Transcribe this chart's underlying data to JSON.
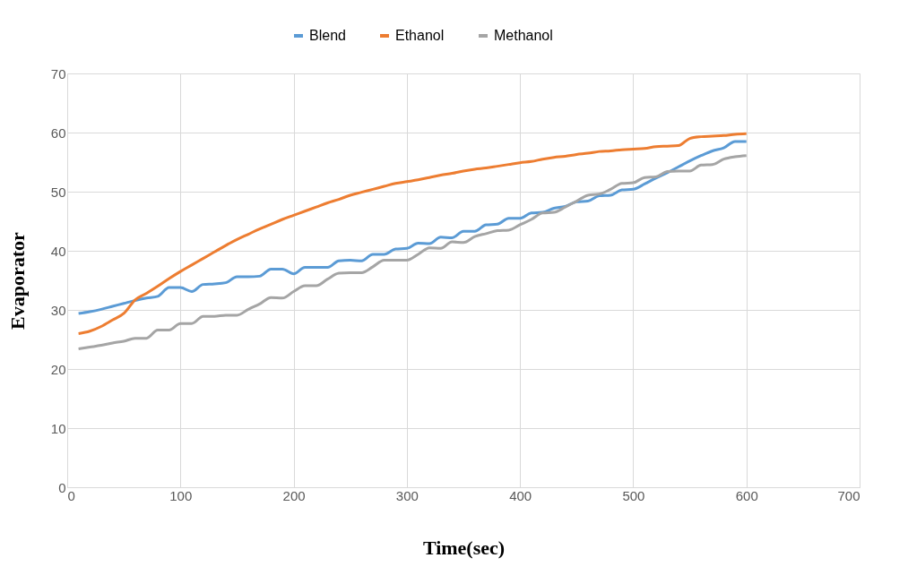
{
  "chart_data": {
    "type": "line",
    "xlabel": "Time(sec)",
    "ylabel": "Evaporator",
    "x": [
      10,
      20,
      30,
      40,
      50,
      60,
      70,
      80,
      90,
      100,
      110,
      120,
      130,
      140,
      150,
      160,
      170,
      180,
      190,
      200,
      210,
      220,
      230,
      240,
      250,
      260,
      270,
      280,
      290,
      300,
      310,
      320,
      330,
      340,
      350,
      360,
      370,
      380,
      390,
      400,
      410,
      420,
      430,
      440,
      450,
      460,
      470,
      480,
      490,
      500,
      510,
      520,
      530,
      540,
      550,
      560,
      570,
      580,
      590,
      600
    ],
    "series": [
      {
        "name": "Blend",
        "color": "#5b9bd5",
        "values": [
          29.4,
          29.7,
          30.1,
          30.6,
          31.1,
          31.6,
          32.0,
          32.3,
          33.8,
          33.8,
          33.1,
          34.3,
          34.4,
          34.6,
          35.6,
          35.6,
          35.7,
          36.9,
          36.9,
          36.1,
          37.2,
          37.2,
          37.2,
          38.3,
          38.4,
          38.3,
          39.4,
          39.4,
          40.3,
          40.4,
          41.3,
          41.2,
          42.3,
          42.2,
          43.3,
          43.3,
          44.4,
          44.5,
          45.5,
          45.5,
          46.4,
          46.5,
          47.2,
          47.5,
          48.3,
          48.4,
          49.3,
          49.4,
          50.3,
          50.4,
          51.3,
          52.3,
          53.2,
          54.2,
          55.2,
          56.1,
          56.9,
          57.4,
          58.5,
          58.5
        ]
      },
      {
        "name": "Ethanol",
        "color": "#ed7d31",
        "values": [
          26.0,
          26.4,
          27.2,
          28.3,
          29.4,
          31.7,
          32.8,
          34.0,
          35.3,
          36.5,
          37.6,
          38.7,
          39.8,
          40.9,
          41.9,
          42.8,
          43.7,
          44.5,
          45.3,
          46.0,
          46.7,
          47.4,
          48.1,
          48.7,
          49.4,
          49.9,
          50.4,
          50.9,
          51.4,
          51.7,
          52.0,
          52.4,
          52.8,
          53.1,
          53.5,
          53.8,
          54.0,
          54.3,
          54.6,
          54.9,
          55.1,
          55.5,
          55.8,
          56.0,
          56.3,
          56.5,
          56.8,
          56.9,
          57.1,
          57.2,
          57.3,
          57.6,
          57.7,
          57.8,
          59.0,
          59.3,
          59.4,
          59.5,
          59.7,
          59.8
        ]
      },
      {
        "name": "Methanol",
        "color": "#a5a5a5",
        "values": [
          23.4,
          23.7,
          24.0,
          24.4,
          24.7,
          25.2,
          25.2,
          26.6,
          26.6,
          27.7,
          27.7,
          28.9,
          28.9,
          29.1,
          29.1,
          30.1,
          31.0,
          32.1,
          32.0,
          33.1,
          34.1,
          34.1,
          35.2,
          36.2,
          36.3,
          36.3,
          37.3,
          38.4,
          38.4,
          38.4,
          39.4,
          40.5,
          40.4,
          41.5,
          41.4,
          42.4,
          42.9,
          43.4,
          43.5,
          44.4,
          45.3,
          46.4,
          46.5,
          47.4,
          48.4,
          49.4,
          49.6,
          50.4,
          51.4,
          51.5,
          52.4,
          52.5,
          53.4,
          53.5,
          53.5,
          54.5,
          54.6,
          55.5,
          55.9,
          56.1
        ]
      }
    ],
    "xlim": [
      0,
      700
    ],
    "xticks": [
      0,
      100,
      200,
      300,
      400,
      500,
      600,
      700
    ],
    "ylim": [
      0,
      70
    ],
    "yticks": [
      0,
      10,
      20,
      30,
      40,
      50,
      60,
      70
    ],
    "grid": true,
    "legend": "top",
    "marker": "none",
    "line_style": "solid"
  }
}
